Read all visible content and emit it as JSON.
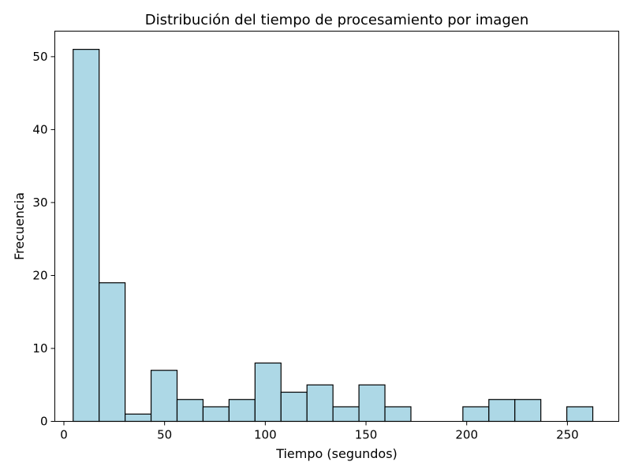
{
  "chart_data": {
    "type": "bar",
    "title": "Distribución del tiempo de procesamiento por imagen",
    "xlabel": "Tiempo (segundos)",
    "ylabel": "Frecuencia",
    "xlim": [
      -4.5,
      275.5
    ],
    "ylim": [
      0,
      53.5
    ],
    "xticks": [
      0,
      50,
      100,
      150,
      200,
      250
    ],
    "yticks": [
      0,
      10,
      20,
      30,
      40,
      50
    ],
    "grid": false,
    "legend": "none",
    "bar_fill": "#add8e6",
    "bar_edge": "#000000",
    "bins": [
      {
        "x0": 4.6,
        "x1": 17.5,
        "count": 51
      },
      {
        "x0": 17.5,
        "x1": 30.4,
        "count": 19
      },
      {
        "x0": 30.4,
        "x1": 43.3,
        "count": 1
      },
      {
        "x0": 43.3,
        "x1": 56.2,
        "count": 7
      },
      {
        "x0": 56.2,
        "x1": 69.1,
        "count": 3
      },
      {
        "x0": 69.1,
        "x1": 82.0,
        "count": 2
      },
      {
        "x0": 82.0,
        "x1": 94.9,
        "count": 3
      },
      {
        "x0": 94.9,
        "x1": 107.8,
        "count": 8
      },
      {
        "x0": 107.8,
        "x1": 120.7,
        "count": 4
      },
      {
        "x0": 120.7,
        "x1": 133.6,
        "count": 5
      },
      {
        "x0": 133.6,
        "x1": 146.5,
        "count": 2
      },
      {
        "x0": 146.5,
        "x1": 159.4,
        "count": 5
      },
      {
        "x0": 159.4,
        "x1": 172.3,
        "count": 2
      },
      {
        "x0": 172.3,
        "x1": 185.2,
        "count": 0
      },
      {
        "x0": 185.2,
        "x1": 198.1,
        "count": 0
      },
      {
        "x0": 198.1,
        "x1": 211.0,
        "count": 2
      },
      {
        "x0": 211.0,
        "x1": 223.9,
        "count": 3
      },
      {
        "x0": 223.9,
        "x1": 236.8,
        "count": 3
      },
      {
        "x0": 236.8,
        "x1": 249.7,
        "count": 0
      },
      {
        "x0": 249.7,
        "x1": 262.6,
        "count": 2
      }
    ]
  }
}
